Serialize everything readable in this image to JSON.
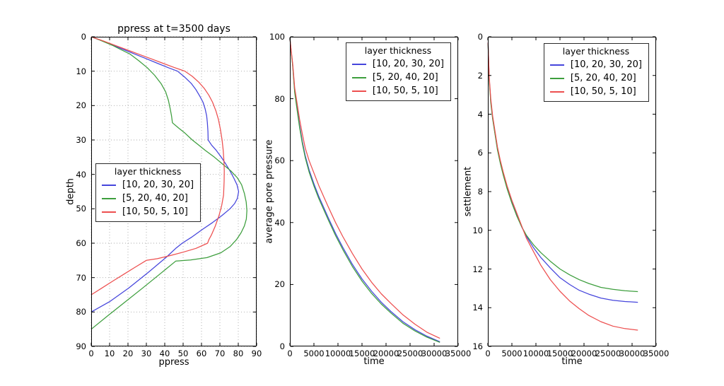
{
  "colors": {
    "blue": "#4545dc",
    "green": "#3d9e3d",
    "red": "#ed4f4f",
    "grid": "#a8a8a8",
    "spine": "#000000"
  },
  "legend": {
    "title": "layer thickness",
    "entries": [
      {
        "label": "[10, 20, 30, 20]",
        "color_key": "blue"
      },
      {
        "label": "[5, 20, 40, 20]",
        "color_key": "green"
      },
      {
        "label": "[10, 50, 5, 10]",
        "color_key": "red"
      }
    ]
  },
  "chart_data": [
    {
      "type": "line",
      "title": "ppress at t=3500 days",
      "xlabel": "ppress",
      "ylabel": "depth",
      "xlim": [
        0,
        90
      ],
      "ylim": [
        0,
        90
      ],
      "y_inverted": true,
      "xticks": [
        0,
        10,
        20,
        30,
        40,
        50,
        60,
        70,
        80,
        90
      ],
      "yticks": [
        0,
        10,
        20,
        30,
        40,
        50,
        60,
        70,
        80,
        90
      ],
      "grid": true,
      "legend_position": "center-left",
      "series": [
        {
          "name": "[10, 20, 30, 20]",
          "color_key": "blue",
          "points": [
            [
              0,
              0
            ],
            [
              6,
              1.2
            ],
            [
              12,
              2.5
            ],
            [
              18,
              3.8
            ],
            [
              24,
              5.1
            ],
            [
              30,
              6.4
            ],
            [
              36,
              7.7
            ],
            [
              42,
              9
            ],
            [
              47,
              10
            ],
            [
              51,
              11.8
            ],
            [
              54.5,
              13.6
            ],
            [
              57,
              15.4
            ],
            [
              59,
              17.2
            ],
            [
              60.8,
              19
            ],
            [
              62,
              21
            ],
            [
              62.8,
              23
            ],
            [
              63.2,
              25
            ],
            [
              63.5,
              27.5
            ],
            [
              63.6,
              30
            ],
            [
              65.5,
              31.5
            ],
            [
              68,
              33
            ],
            [
              70.5,
              34.8
            ],
            [
              73,
              36.8
            ],
            [
              75.5,
              39
            ],
            [
              77.5,
              41
            ],
            [
              79.3,
              43
            ],
            [
              80.2,
              45
            ],
            [
              79.5,
              47
            ],
            [
              78,
              48.5
            ],
            [
              75.5,
              50
            ],
            [
              71,
              52
            ],
            [
              66,
              54
            ],
            [
              60.5,
              56
            ],
            [
              54.5,
              58.3
            ],
            [
              49.5,
              60
            ],
            [
              46,
              61.5
            ],
            [
              41,
              64
            ],
            [
              31,
              68.5
            ],
            [
              20.5,
              73
            ],
            [
              10,
              77
            ],
            [
              0,
              80
            ]
          ]
        },
        {
          "name": "[5, 20, 40, 20]",
          "color_key": "green",
          "points": [
            [
              0,
              0
            ],
            [
              4,
              0.8
            ],
            [
              8,
              1.7
            ],
            [
              12,
              2.6
            ],
            [
              16,
              3.7
            ],
            [
              21,
              5
            ],
            [
              26,
              7
            ],
            [
              30.5,
              9
            ],
            [
              34.5,
              11.2
            ],
            [
              38,
              13.6
            ],
            [
              40.5,
              16
            ],
            [
              42,
              18.5
            ],
            [
              43,
              21
            ],
            [
              43.7,
              23
            ],
            [
              44.2,
              25
            ],
            [
              47.5,
              26.5
            ],
            [
              51,
              28
            ],
            [
              55,
              30
            ],
            [
              58.5,
              31.5
            ],
            [
              62,
              33
            ],
            [
              67,
              35
            ],
            [
              71.5,
              37
            ],
            [
              76,
              39
            ],
            [
              79.5,
              41
            ],
            [
              81.8,
              43
            ],
            [
              83.3,
              45.5
            ],
            [
              84.3,
              48
            ],
            [
              84.7,
              50.5
            ],
            [
              84.4,
              53
            ],
            [
              83.3,
              55
            ],
            [
              81.5,
              57
            ],
            [
              79,
              59
            ],
            [
              75.5,
              61
            ],
            [
              70.5,
              62.8
            ],
            [
              63,
              64.2
            ],
            [
              54,
              64.9
            ],
            [
              46,
              65.2
            ],
            [
              36.8,
              69.2
            ],
            [
              27.6,
              73.2
            ],
            [
              18.4,
              77.1
            ],
            [
              9.2,
              81
            ],
            [
              0,
              85
            ]
          ]
        },
        {
          "name": "[10, 50, 5, 10]",
          "color_key": "red",
          "points": [
            [
              0,
              0
            ],
            [
              6.5,
              1.2
            ],
            [
              13,
              2.5
            ],
            [
              19.5,
              3.8
            ],
            [
              26,
              5.1
            ],
            [
              32.5,
              6.4
            ],
            [
              39,
              7.7
            ],
            [
              45,
              8.9
            ],
            [
              51,
              10
            ],
            [
              55,
              11.5
            ],
            [
              58.5,
              13.2
            ],
            [
              61.5,
              15
            ],
            [
              64,
              17
            ],
            [
              66,
              19
            ],
            [
              67.8,
              21.5
            ],
            [
              69.2,
              24
            ],
            [
              70.3,
              27
            ],
            [
              71.2,
              30
            ],
            [
              71.8,
              33
            ],
            [
              72.2,
              36
            ],
            [
              72.4,
              39
            ],
            [
              72.3,
              42
            ],
            [
              72,
              46
            ],
            [
              71,
              49
            ],
            [
              69.5,
              52
            ],
            [
              67.5,
              55
            ],
            [
              65.5,
              57.5
            ],
            [
              64,
              59
            ],
            [
              63.3,
              60
            ],
            [
              57,
              61.5
            ],
            [
              50,
              62.6
            ],
            [
              43,
              63.6
            ],
            [
              36,
              64.5
            ],
            [
              30,
              65
            ],
            [
              23.8,
              67
            ],
            [
              17.8,
              69
            ],
            [
              11.8,
              71
            ],
            [
              5.9,
              73
            ],
            [
              0,
              75
            ]
          ]
        }
      ]
    },
    {
      "type": "line",
      "title": "",
      "xlabel": "time",
      "ylabel": "average pore pressure",
      "xlim": [
        0,
        35000
      ],
      "ylim": [
        0,
        100
      ],
      "y_inverted": false,
      "xticks": [
        0,
        5000,
        10000,
        15000,
        20000,
        25000,
        30000,
        35000
      ],
      "yticks": [
        0,
        20,
        40,
        60,
        80,
        100
      ],
      "grid": false,
      "legend_position": "upper-right",
      "x": [
        50,
        300,
        600,
        1000,
        1500,
        2000,
        2600,
        3200,
        4000,
        5000,
        6000,
        7000,
        8000,
        9500,
        11000,
        13000,
        15000,
        17000,
        19000,
        21000,
        23500,
        26000,
        28500,
        31200
      ],
      "series": [
        {
          "name": "[10, 20, 30, 20]",
          "color_key": "blue",
          "values": [
            99,
            95,
            90.5,
            82.5,
            77,
            71.5,
            66,
            61.5,
            57,
            52.5,
            48.5,
            45,
            41.5,
            36.5,
            32,
            26.5,
            21.8,
            17.8,
            14.3,
            11.3,
            8,
            5.4,
            3.3,
            1.5
          ]
        },
        {
          "name": "[5, 20, 40, 20]",
          "color_key": "green",
          "values": [
            99,
            94.8,
            90.2,
            82,
            76.4,
            70.9,
            65.4,
            60.9,
            56.3,
            51.8,
            47.8,
            44.3,
            40.8,
            35.8,
            31.3,
            25.8,
            21.1,
            17.1,
            13.7,
            10.8,
            7.5,
            5,
            3,
            1.3
          ]
        },
        {
          "name": "[10, 50, 5, 10]",
          "color_key": "red",
          "values": [
            99,
            95.3,
            91,
            83.5,
            78.5,
            73.5,
            68.5,
            64,
            60,
            56,
            52,
            48.5,
            45,
            40,
            35.5,
            30,
            25,
            20.7,
            17,
            13.9,
            10.2,
            7.2,
            4.6,
            2.6
          ]
        }
      ]
    },
    {
      "type": "line",
      "title": "",
      "xlabel": "time",
      "ylabel": "settlement",
      "xlim": [
        0,
        35000
      ],
      "ylim": [
        0,
        16
      ],
      "y_inverted": true,
      "xticks": [
        0,
        5000,
        10000,
        15000,
        20000,
        25000,
        30000,
        35000
      ],
      "yticks": [
        0,
        2,
        4,
        6,
        8,
        10,
        12,
        14,
        16
      ],
      "grid": false,
      "legend_position": "upper-right",
      "x": [
        50,
        300,
        600,
        1000,
        1500,
        2000,
        2600,
        3200,
        4000,
        5000,
        6000,
        7000,
        8000,
        9500,
        11000,
        13000,
        15000,
        17000,
        19000,
        21000,
        23500,
        26000,
        28500,
        31200
      ],
      "series": [
        {
          "name": "[10, 20, 30, 20]",
          "color_key": "blue",
          "values": [
            0.3,
            2.2,
            3.3,
            4.2,
            5.0,
            5.8,
            6.5,
            7.1,
            7.8,
            8.55,
            9.2,
            9.8,
            10.3,
            10.9,
            11.4,
            11.95,
            12.45,
            12.8,
            13.1,
            13.3,
            13.5,
            13.62,
            13.68,
            13.72
          ]
        },
        {
          "name": "[5, 20, 40, 20]",
          "color_key": "green",
          "values": [
            0.35,
            2.3,
            3.4,
            4.25,
            5.05,
            5.85,
            6.55,
            7.15,
            7.85,
            8.6,
            9.25,
            9.8,
            10.25,
            10.75,
            11.15,
            11.6,
            12.0,
            12.3,
            12.55,
            12.75,
            12.95,
            13.05,
            13.12,
            13.17
          ]
        },
        {
          "name": "[10, 50, 5, 10]",
          "color_key": "red",
          "values": [
            0.3,
            2.1,
            3.2,
            4.1,
            4.9,
            5.7,
            6.4,
            7.0,
            7.7,
            8.45,
            9.1,
            9.75,
            10.4,
            11.1,
            11.8,
            12.55,
            13.15,
            13.65,
            14.05,
            14.4,
            14.72,
            14.95,
            15.08,
            15.16
          ]
        }
      ]
    }
  ]
}
